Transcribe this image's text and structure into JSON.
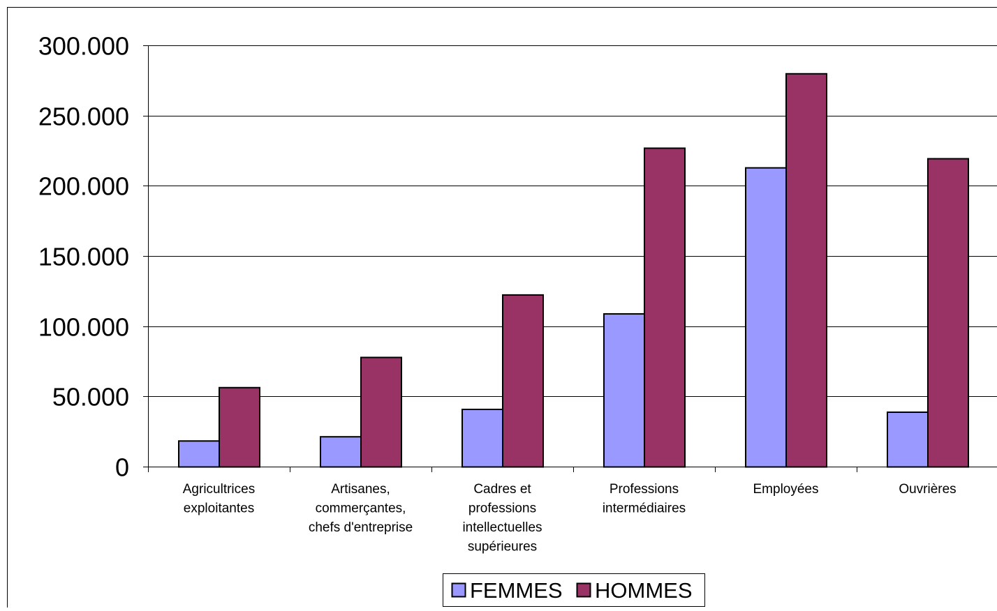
{
  "chart_data": {
    "type": "bar",
    "categories": [
      [
        "Agricultrices",
        "exploitantes"
      ],
      [
        "Artisanes,",
        "commerçantes,",
        "chefs d'entreprise"
      ],
      [
        "Cadres et",
        "professions",
        "intellectuelles",
        "supérieures"
      ],
      [
        "Professions",
        "intermédiaires"
      ],
      [
        "Employées"
      ],
      [
        "Ouvrières"
      ]
    ],
    "series": [
      {
        "name": "FEMMES",
        "color": "#9999ff",
        "values": [
          18500,
          21500,
          41000,
          109000,
          213000,
          39000
        ]
      },
      {
        "name": "HOMMES",
        "color": "#993366",
        "values": [
          56500,
          78000,
          122500,
          227000,
          280000,
          219500
        ]
      }
    ],
    "yticks": [
      "0",
      "50.000",
      "100.000",
      "150.000",
      "200.000",
      "250.000",
      "300.000"
    ],
    "ylim": [
      0,
      300000
    ],
    "grid": true,
    "legend_position": "bottom-center",
    "title": "",
    "xlabel": "",
    "ylabel": ""
  }
}
